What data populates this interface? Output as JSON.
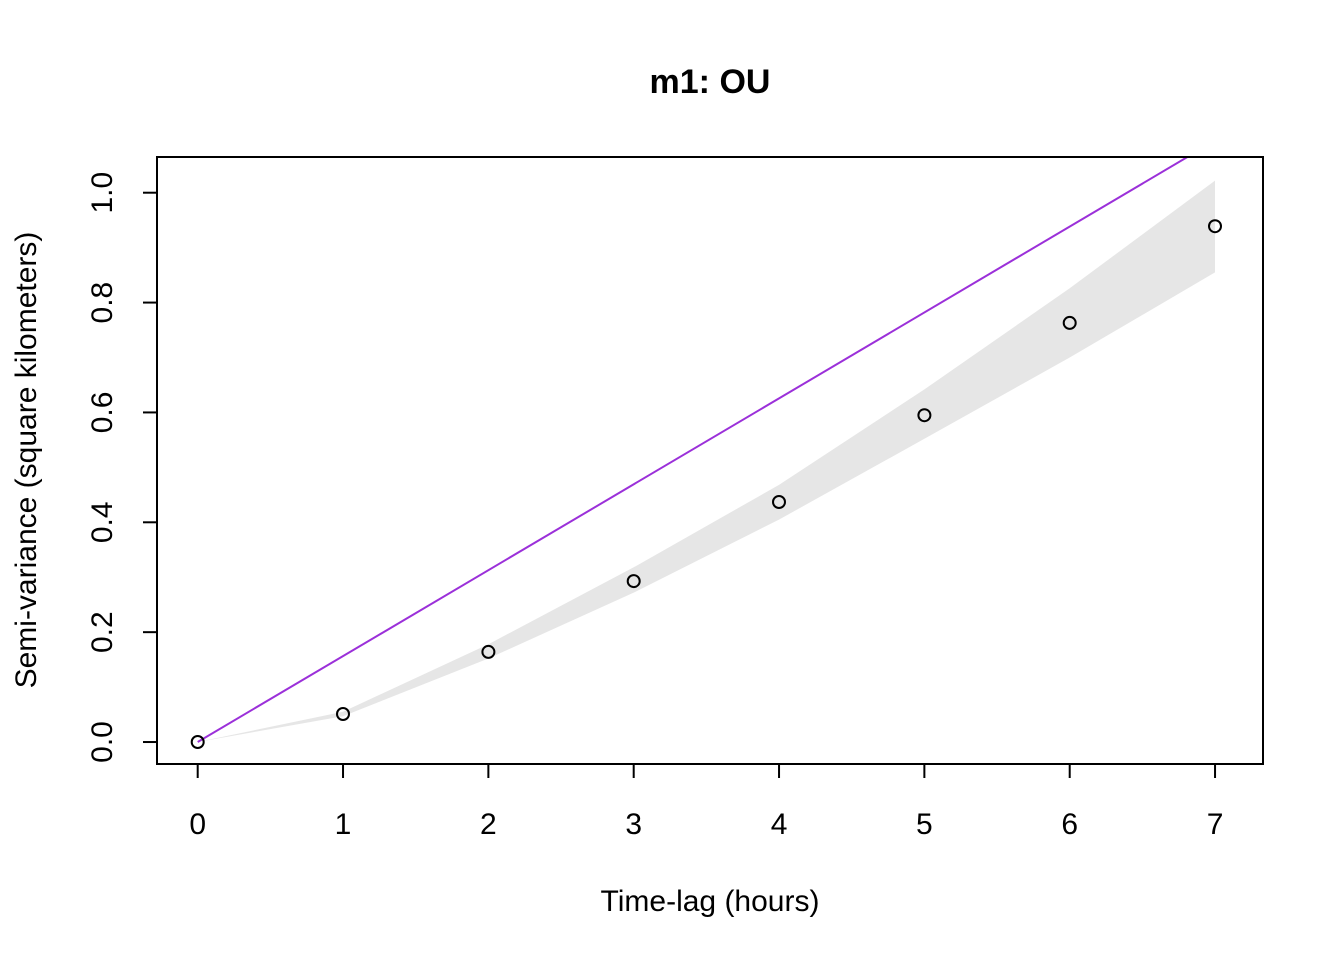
{
  "chart_data": {
    "type": "scatter",
    "title": "m1: OU",
    "xlabel": "Time-lag (hours)",
    "ylabel": "Semi-variance (square kilometers)",
    "xlim": [
      -0.28,
      7.33
    ],
    "ylim": [
      -0.04,
      1.065
    ],
    "x_ticks": [
      "0",
      "1",
      "2",
      "3",
      "4",
      "5",
      "6",
      "7"
    ],
    "y_ticks": [
      "0.0",
      "0.2",
      "0.4",
      "0.6",
      "0.8",
      "1.0"
    ],
    "grid": false,
    "points": {
      "x": [
        0,
        1,
        2,
        3,
        4,
        5,
        6,
        7
      ],
      "y": [
        0.0,
        0.051,
        0.164,
        0.293,
        0.437,
        0.595,
        0.763,
        0.939
      ]
    },
    "model_line": {
      "color": "#9b30d9",
      "x": [
        0,
        6.81
      ],
      "y": [
        0.0,
        1.065
      ]
    },
    "confidence_band": {
      "color": "#e6e6e6",
      "x": [
        0,
        1,
        2,
        3,
        4,
        5,
        6,
        7
      ],
      "upper": [
        0.0,
        0.055,
        0.178,
        0.318,
        0.468,
        0.642,
        0.826,
        1.022
      ],
      "lower": [
        0.0,
        0.047,
        0.152,
        0.272,
        0.405,
        0.552,
        0.7,
        0.855
      ]
    }
  }
}
